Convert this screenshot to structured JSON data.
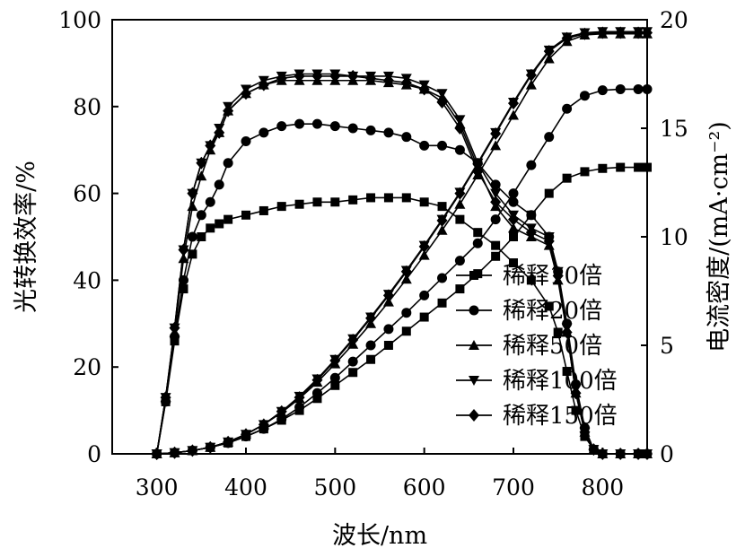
{
  "chart_data": {
    "type": "line",
    "xlabel": "波长/nm",
    "ylabel_left": "光转换效率/%",
    "ylabel_right": "电流密度/(mA·cm⁻²)",
    "x_ticks": [
      "300",
      "400",
      "500",
      "600",
      "700",
      "800"
    ],
    "y_left_ticks": [
      "0",
      "20",
      "40",
      "60",
      "80",
      "100"
    ],
    "y_right_ticks": [
      "0",
      "5",
      "10",
      "15",
      "20"
    ],
    "xlim": [
      250,
      850
    ],
    "ylim_left": [
      0,
      100
    ],
    "ylim_right": [
      0,
      20
    ],
    "legend_position": "lower-right",
    "legend": [
      "稀释10倍",
      "稀释20倍",
      "稀释50倍",
      "稀释100倍",
      "稀释150倍"
    ],
    "markers": [
      "square",
      "circle",
      "triangle-up",
      "triangle-down",
      "diamond"
    ],
    "eqe_series": [
      {
        "name": "稀释10倍",
        "x": [
          300,
          310,
          320,
          330,
          340,
          350,
          360,
          370,
          380,
          400,
          420,
          440,
          460,
          480,
          500,
          520,
          540,
          560,
          580,
          600,
          620,
          640,
          660,
          680,
          700,
          720,
          740,
          750,
          760,
          770,
          780,
          790,
          800,
          820,
          840,
          850
        ],
        "y": [
          0,
          12,
          26,
          38,
          46,
          50,
          52,
          53,
          54,
          55,
          56,
          57,
          57.5,
          58,
          58,
          58.5,
          59,
          59,
          59,
          58,
          57,
          54,
          51,
          48,
          44,
          40,
          34,
          28,
          19,
          10,
          4,
          1,
          0,
          0,
          0,
          0
        ]
      },
      {
        "name": "稀释20倍",
        "x": [
          300,
          310,
          320,
          330,
          340,
          350,
          360,
          370,
          380,
          400,
          420,
          440,
          460,
          480,
          500,
          520,
          540,
          560,
          580,
          600,
          620,
          640,
          660,
          680,
          700,
          720,
          740,
          750,
          760,
          770,
          780,
          790,
          800,
          820,
          840,
          850
        ],
        "y": [
          0,
          12,
          27,
          40,
          50,
          55,
          58,
          62,
          67,
          72,
          74,
          75.5,
          76,
          76,
          75.5,
          75,
          74.5,
          74,
          73,
          71,
          71,
          70,
          67,
          62,
          58,
          55,
          50,
          42,
          30,
          16,
          6,
          1,
          0,
          0,
          0,
          0
        ]
      },
      {
        "name": "稀释50倍",
        "x": [
          300,
          310,
          320,
          330,
          340,
          350,
          360,
          370,
          380,
          400,
          420,
          440,
          460,
          480,
          500,
          520,
          540,
          560,
          580,
          600,
          620,
          640,
          660,
          680,
          700,
          720,
          740,
          750,
          760,
          770,
          780,
          790,
          800,
          820,
          840,
          850
        ],
        "y": [
          0,
          13,
          28,
          45,
          57,
          64,
          70,
          74,
          79,
          83,
          85,
          86,
          86,
          86,
          86,
          86,
          86,
          85.5,
          85,
          84,
          82,
          76,
          66,
          57,
          52,
          50,
          48,
          40,
          28,
          14,
          5,
          1,
          0,
          0,
          0,
          0
        ]
      },
      {
        "name": "稀释100倍",
        "x": [
          300,
          310,
          320,
          330,
          340,
          350,
          360,
          370,
          380,
          400,
          420,
          440,
          460,
          480,
          500,
          520,
          540,
          560,
          580,
          600,
          620,
          640,
          660,
          680,
          700,
          720,
          740,
          750,
          760,
          770,
          780,
          790,
          800,
          820,
          840,
          850
        ],
        "y": [
          0,
          13,
          29,
          47,
          60,
          67,
          71,
          75,
          80,
          84,
          86,
          87,
          87.5,
          87.5,
          87.5,
          87,
          87,
          87,
          86.5,
          85,
          83,
          77,
          67,
          60,
          55,
          52,
          50,
          42,
          29,
          15,
          5,
          1,
          0,
          0,
          0,
          0
        ]
      },
      {
        "name": "稀释150倍",
        "x": [
          300,
          310,
          320,
          330,
          340,
          350,
          360,
          370,
          380,
          400,
          420,
          440,
          460,
          480,
          500,
          520,
          540,
          560,
          580,
          600,
          620,
          640,
          660,
          680,
          700,
          720,
          740,
          750,
          760,
          770,
          780,
          790,
          800,
          820,
          840,
          850
        ],
        "y": [
          0,
          13,
          29,
          47,
          60,
          67,
          71,
          74,
          79,
          83,
          85,
          86.5,
          87,
          87,
          87,
          87,
          86.5,
          86,
          85.5,
          84,
          81,
          75,
          65,
          58,
          54,
          51,
          49,
          41,
          28,
          14,
          5,
          1,
          0,
          0,
          0,
          0
        ]
      }
    ],
    "jsc_series": [
      {
        "name": "稀释10倍",
        "x": [
          300,
          320,
          340,
          360,
          380,
          400,
          420,
          440,
          460,
          480,
          500,
          520,
          540,
          560,
          580,
          600,
          620,
          640,
          660,
          680,
          700,
          720,
          740,
          760,
          780,
          800,
          820,
          840,
          850
        ],
        "y": [
          0,
          0.05,
          0.15,
          0.3,
          0.5,
          0.8,
          1.15,
          1.55,
          2.0,
          2.55,
          3.15,
          3.75,
          4.35,
          5.0,
          5.65,
          6.3,
          6.95,
          7.6,
          8.3,
          9.1,
          10.0,
          11.0,
          12.0,
          12.7,
          13.0,
          13.15,
          13.2,
          13.2,
          13.2
        ]
      },
      {
        "name": "稀释20倍",
        "x": [
          300,
          320,
          340,
          360,
          380,
          400,
          420,
          440,
          460,
          480,
          500,
          520,
          540,
          560,
          580,
          600,
          620,
          640,
          660,
          680,
          700,
          720,
          740,
          760,
          780,
          800,
          820,
          840,
          850
        ],
        "y": [
          0,
          0.05,
          0.15,
          0.3,
          0.5,
          0.8,
          1.15,
          1.6,
          2.15,
          2.8,
          3.5,
          4.25,
          5.0,
          5.75,
          6.5,
          7.3,
          8.1,
          8.9,
          9.7,
          10.8,
          12.0,
          13.3,
          14.6,
          15.9,
          16.5,
          16.75,
          16.8,
          16.8,
          16.8
        ]
      },
      {
        "name": "稀释50倍",
        "x": [
          300,
          320,
          340,
          360,
          380,
          400,
          420,
          440,
          460,
          480,
          500,
          520,
          540,
          560,
          580,
          600,
          620,
          640,
          660,
          680,
          700,
          720,
          740,
          760,
          780,
          800,
          820,
          840,
          850
        ],
        "y": [
          0,
          0.05,
          0.15,
          0.3,
          0.55,
          0.9,
          1.35,
          1.9,
          2.55,
          3.3,
          4.15,
          5.05,
          6.0,
          7.0,
          8.05,
          9.15,
          10.3,
          11.5,
          12.85,
          14.2,
          15.6,
          17.0,
          18.2,
          19.0,
          19.3,
          19.35,
          19.35,
          19.35,
          19.35
        ]
      },
      {
        "name": "稀释100倍",
        "x": [
          300,
          320,
          340,
          360,
          380,
          400,
          420,
          440,
          460,
          480,
          500,
          520,
          540,
          560,
          580,
          600,
          620,
          640,
          660,
          680,
          700,
          720,
          740,
          760,
          780,
          800,
          820,
          840,
          850
        ],
        "y": [
          0,
          0.05,
          0.15,
          0.3,
          0.55,
          0.9,
          1.35,
          1.95,
          2.65,
          3.45,
          4.35,
          5.3,
          6.3,
          7.35,
          8.45,
          9.6,
          10.8,
          12.05,
          13.4,
          14.8,
          16.2,
          17.5,
          18.6,
          19.2,
          19.4,
          19.45,
          19.45,
          19.45,
          19.45
        ]
      },
      {
        "name": "稀释150倍",
        "x": [
          300,
          320,
          340,
          360,
          380,
          400,
          420,
          440,
          460,
          480,
          500,
          520,
          540,
          560,
          580,
          600,
          620,
          640,
          660,
          680,
          700,
          720,
          740,
          760,
          780,
          800,
          820,
          840,
          850
        ],
        "y": [
          0,
          0.05,
          0.15,
          0.3,
          0.55,
          0.9,
          1.35,
          1.95,
          2.6,
          3.4,
          4.3,
          5.25,
          6.25,
          7.3,
          8.4,
          9.55,
          10.75,
          12.0,
          13.35,
          14.75,
          16.15,
          17.45,
          18.55,
          19.15,
          19.35,
          19.4,
          19.4,
          19.4,
          19.4
        ]
      }
    ]
  }
}
